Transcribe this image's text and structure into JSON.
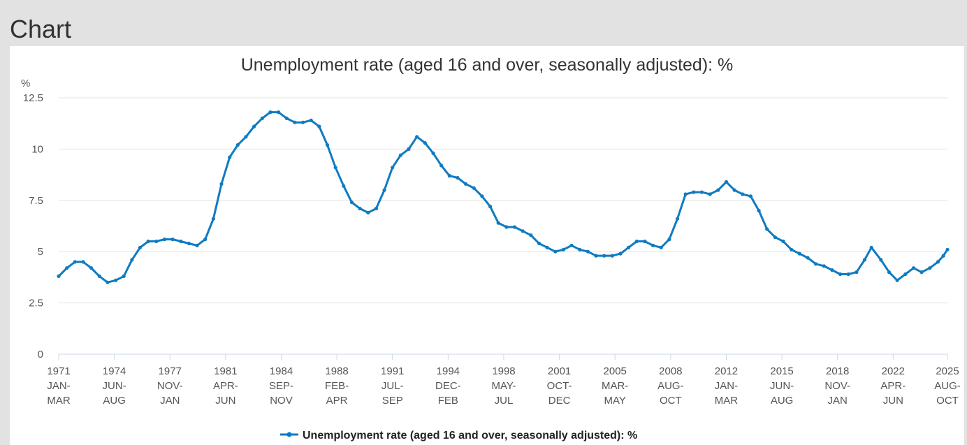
{
  "page": {
    "heading": "Chart"
  },
  "chart_data": {
    "type": "line",
    "title": "Unemployment rate (aged 16 and over, seasonally adjusted): %",
    "ylabel": "%",
    "ylim": [
      0,
      12.5
    ],
    "yticks": [
      "0",
      "2.5",
      "5",
      "7.5",
      "10",
      "12.5"
    ],
    "y_tick_values": [
      0,
      2.5,
      5,
      7.5,
      10,
      12.5
    ],
    "x_range": [
      "1971-01",
      "2025-08"
    ],
    "x_ticks": [
      {
        "year": "1971",
        "months": [
          "JAN-",
          "MAR"
        ],
        "at": "1971-01"
      },
      {
        "year": "1974",
        "months": [
          "JUN-",
          "AUG"
        ],
        "at": "1974-06"
      },
      {
        "year": "1977",
        "months": [
          "NOV-",
          "JAN"
        ],
        "at": "1977-11"
      },
      {
        "year": "1981",
        "months": [
          "APR-",
          "JUN"
        ],
        "at": "1981-04"
      },
      {
        "year": "1984",
        "months": [
          "SEP-",
          "NOV"
        ],
        "at": "1984-09"
      },
      {
        "year": "1988",
        "months": [
          "FEB-",
          "APR"
        ],
        "at": "1988-02"
      },
      {
        "year": "1991",
        "months": [
          "JUL-",
          "SEP"
        ],
        "at": "1991-07"
      },
      {
        "year": "1994",
        "months": [
          "DEC-",
          "FEB"
        ],
        "at": "1994-12"
      },
      {
        "year": "1998",
        "months": [
          "MAY-",
          "JUL"
        ],
        "at": "1998-05"
      },
      {
        "year": "2001",
        "months": [
          "OCT-",
          "DEC"
        ],
        "at": "2001-10"
      },
      {
        "year": "2005",
        "months": [
          "MAR-",
          "MAY"
        ],
        "at": "2005-03"
      },
      {
        "year": "2008",
        "months": [
          "AUG-",
          "OCT"
        ],
        "at": "2008-08"
      },
      {
        "year": "2012",
        "months": [
          "JAN-",
          "MAR"
        ],
        "at": "2012-01"
      },
      {
        "year": "2015",
        "months": [
          "JUN-",
          "AUG"
        ],
        "at": "2015-06"
      },
      {
        "year": "2018",
        "months": [
          "NOV-",
          "JAN"
        ],
        "at": "2018-11"
      },
      {
        "year": "2022",
        "months": [
          "APR-",
          "JUN"
        ],
        "at": "2022-04"
      },
      {
        "year": "2025",
        "months": [
          "AUG-",
          "OCT"
        ],
        "at": "2025-08"
      }
    ],
    "grid": true,
    "legend_position": "bottom-center",
    "series": [
      {
        "name": "Unemployment rate (aged 16 and over, seasonally adjusted): %",
        "color": "#0f7bc0",
        "points": [
          [
            "1971-01",
            3.8
          ],
          [
            "1971-07",
            4.2
          ],
          [
            "1972-01",
            4.5
          ],
          [
            "1972-07",
            4.5
          ],
          [
            "1973-01",
            4.2
          ],
          [
            "1973-07",
            3.8
          ],
          [
            "1974-01",
            3.5
          ],
          [
            "1974-07",
            3.6
          ],
          [
            "1975-01",
            3.8
          ],
          [
            "1975-07",
            4.6
          ],
          [
            "1976-01",
            5.2
          ],
          [
            "1976-07",
            5.5
          ],
          [
            "1977-01",
            5.5
          ],
          [
            "1977-07",
            5.6
          ],
          [
            "1978-01",
            5.6
          ],
          [
            "1978-07",
            5.5
          ],
          [
            "1979-01",
            5.4
          ],
          [
            "1979-07",
            5.3
          ],
          [
            "1980-01",
            5.6
          ],
          [
            "1980-07",
            6.6
          ],
          [
            "1981-01",
            8.3
          ],
          [
            "1981-07",
            9.6
          ],
          [
            "1982-01",
            10.2
          ],
          [
            "1982-07",
            10.6
          ],
          [
            "1983-01",
            11.1
          ],
          [
            "1983-07",
            11.5
          ],
          [
            "1984-01",
            11.8
          ],
          [
            "1984-07",
            11.8
          ],
          [
            "1985-01",
            11.5
          ],
          [
            "1985-07",
            11.3
          ],
          [
            "1986-01",
            11.3
          ],
          [
            "1986-07",
            11.4
          ],
          [
            "1987-01",
            11.1
          ],
          [
            "1987-07",
            10.2
          ],
          [
            "1988-01",
            9.1
          ],
          [
            "1988-07",
            8.2
          ],
          [
            "1989-01",
            7.4
          ],
          [
            "1989-07",
            7.1
          ],
          [
            "1990-01",
            6.9
          ],
          [
            "1990-07",
            7.1
          ],
          [
            "1991-01",
            8.0
          ],
          [
            "1991-07",
            9.1
          ],
          [
            "1992-01",
            9.7
          ],
          [
            "1992-07",
            10.0
          ],
          [
            "1993-01",
            10.6
          ],
          [
            "1993-07",
            10.3
          ],
          [
            "1994-01",
            9.8
          ],
          [
            "1994-07",
            9.2
          ],
          [
            "1995-01",
            8.7
          ],
          [
            "1995-07",
            8.6
          ],
          [
            "1996-01",
            8.3
          ],
          [
            "1996-07",
            8.1
          ],
          [
            "1997-01",
            7.7
          ],
          [
            "1997-07",
            7.2
          ],
          [
            "1998-01",
            6.4
          ],
          [
            "1998-07",
            6.2
          ],
          [
            "1999-01",
            6.2
          ],
          [
            "1999-07",
            6.0
          ],
          [
            "2000-01",
            5.8
          ],
          [
            "2000-07",
            5.4
          ],
          [
            "2001-01",
            5.2
          ],
          [
            "2001-07",
            5.0
          ],
          [
            "2002-01",
            5.1
          ],
          [
            "2002-07",
            5.3
          ],
          [
            "2003-01",
            5.1
          ],
          [
            "2003-07",
            5.0
          ],
          [
            "2004-01",
            4.8
          ],
          [
            "2004-07",
            4.8
          ],
          [
            "2005-01",
            4.8
          ],
          [
            "2005-07",
            4.9
          ],
          [
            "2006-01",
            5.2
          ],
          [
            "2006-07",
            5.5
          ],
          [
            "2007-01",
            5.5
          ],
          [
            "2007-07",
            5.3
          ],
          [
            "2008-01",
            5.2
          ],
          [
            "2008-07",
            5.6
          ],
          [
            "2009-01",
            6.6
          ],
          [
            "2009-07",
            7.8
          ],
          [
            "2010-01",
            7.9
          ],
          [
            "2010-07",
            7.9
          ],
          [
            "2011-01",
            7.8
          ],
          [
            "2011-07",
            8.0
          ],
          [
            "2012-01",
            8.4
          ],
          [
            "2012-07",
            8.0
          ],
          [
            "2013-01",
            7.8
          ],
          [
            "2013-07",
            7.7
          ],
          [
            "2014-01",
            7.0
          ],
          [
            "2014-07",
            6.1
          ],
          [
            "2015-01",
            5.7
          ],
          [
            "2015-07",
            5.5
          ],
          [
            "2016-01",
            5.1
          ],
          [
            "2016-07",
            4.9
          ],
          [
            "2017-01",
            4.7
          ],
          [
            "2017-07",
            4.4
          ],
          [
            "2018-01",
            4.3
          ],
          [
            "2018-07",
            4.1
          ],
          [
            "2019-01",
            3.9
          ],
          [
            "2019-07",
            3.9
          ],
          [
            "2020-01",
            4.0
          ],
          [
            "2020-07",
            4.6
          ],
          [
            "2020-12",
            5.2
          ],
          [
            "2021-07",
            4.6
          ],
          [
            "2022-01",
            4.0
          ],
          [
            "2022-07",
            3.6
          ],
          [
            "2023-01",
            3.9
          ],
          [
            "2023-07",
            4.2
          ],
          [
            "2024-01",
            4.0
          ],
          [
            "2024-07",
            4.2
          ],
          [
            "2025-01",
            4.5
          ],
          [
            "2025-05",
            4.8
          ],
          [
            "2025-08",
            5.1
          ]
        ]
      }
    ]
  }
}
